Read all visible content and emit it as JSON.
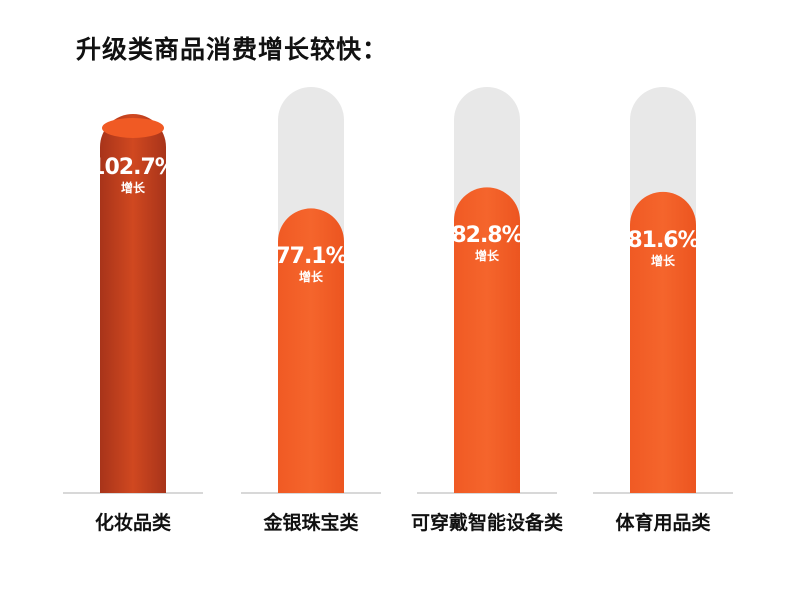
{
  "chart_data": {
    "type": "bar",
    "title": "升级类商品消费增长较快：",
    "categories": [
      "化妆品类",
      "金银珠宝类",
      "可穿戴智能设备类",
      "体育用品类"
    ],
    "values": [
      102.7,
      77.1,
      82.8,
      81.6
    ],
    "value_labels": [
      "102.7%",
      "77.1%",
      "82.8%",
      "81.6%"
    ],
    "sublabel": "增长",
    "ylim": [
      0,
      110
    ],
    "grid": false,
    "legend": "none",
    "colors": {
      "bar": "#f05a24",
      "bar_highlight": "#c8401c",
      "track": "#e8e8e8",
      "baseline": "#cccccc"
    }
  }
}
